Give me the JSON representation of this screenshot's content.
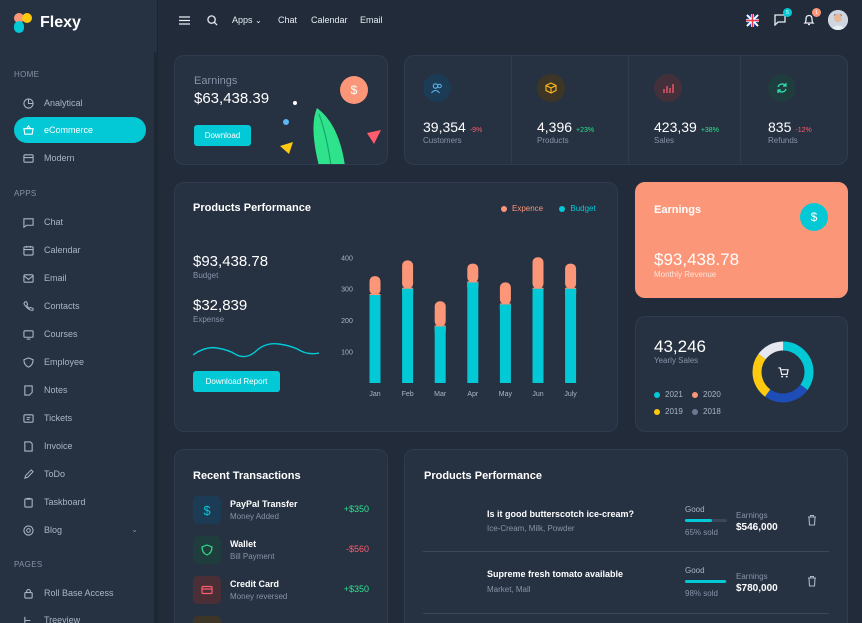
{
  "app": {
    "name": "Flexy"
  },
  "sidebar": {
    "sections": [
      {
        "title": "HOME",
        "items": [
          {
            "label": "Analytical",
            "icon": "chart-icon"
          },
          {
            "label": "eCommerce",
            "icon": "basket-icon",
            "active": true
          },
          {
            "label": "Modern",
            "icon": "window-icon"
          }
        ]
      },
      {
        "title": "APPS",
        "items": [
          {
            "label": "Chat",
            "icon": "chat-icon"
          },
          {
            "label": "Calendar",
            "icon": "calendar-icon"
          },
          {
            "label": "Email",
            "icon": "mail-icon"
          },
          {
            "label": "Contacts",
            "icon": "phone-icon"
          },
          {
            "label": "Courses",
            "icon": "course-icon"
          },
          {
            "label": "Employee",
            "icon": "shield-icon"
          },
          {
            "label": "Notes",
            "icon": "note-icon"
          },
          {
            "label": "Tickets",
            "icon": "ticket-icon"
          },
          {
            "label": "Invoice",
            "icon": "file-icon"
          },
          {
            "label": "ToDo",
            "icon": "edit-icon"
          },
          {
            "label": "Taskboard",
            "icon": "clipboard-icon"
          },
          {
            "label": "Blog",
            "icon": "blog-icon",
            "has_children": true
          }
        ]
      },
      {
        "title": "PAGES",
        "items": [
          {
            "label": "Roll Base Access",
            "icon": "lock-icon"
          },
          {
            "label": "Treeview",
            "icon": "tree-icon"
          }
        ]
      }
    ]
  },
  "topbar": {
    "links": [
      "Apps",
      "Chat",
      "Calendar",
      "Email"
    ],
    "messages_badge": "5",
    "notifications_badge": "1"
  },
  "earnings_small": {
    "label": "Earnings",
    "value": "$63,438.39",
    "button": "Download"
  },
  "stats": [
    {
      "value": "39,354",
      "change": "-9%",
      "direction": "down",
      "label": "Customers",
      "icon": "users-icon",
      "bg": "#1c3b55",
      "fg": "#5cb6f2"
    },
    {
      "value": "4,396",
      "change": "+23%",
      "direction": "up",
      "label": "Products",
      "icon": "box-icon",
      "bg": "#3d3626",
      "fg": "#ffb91c"
    },
    {
      "value": "423,39",
      "change": "+38%",
      "direction": "up",
      "label": "Sales",
      "icon": "bar-chart-icon",
      "bg": "#43303a",
      "fg": "#ff5c6c"
    },
    {
      "value": "835",
      "change": "-12%",
      "direction": "down",
      "label": "Refunds",
      "icon": "refresh-icon",
      "bg": "#1f3d3c",
      "fg": "#2ee3b4"
    }
  ],
  "products_performance": {
    "title": "Products Performance",
    "legend": [
      "Expence",
      "Budget"
    ],
    "budget_value": "$93,438.78",
    "budget_label": "Budget",
    "expense_value": "$32,839",
    "expense_label": "Expense",
    "button": "Download Report"
  },
  "chart_data": {
    "type": "bar",
    "stacked": true,
    "categories": [
      "Jan",
      "Feb",
      "Mar",
      "Apr",
      "May",
      "Jun",
      "July"
    ],
    "series": [
      {
        "name": "Budget",
        "values": [
          280,
          300,
          180,
          320,
          250,
          300,
          300
        ],
        "color": "#03c9d7"
      },
      {
        "name": "Expence",
        "values": [
          60,
          90,
          80,
          60,
          70,
          100,
          80
        ],
        "color": "#fb9678"
      }
    ],
    "yticks": [
      100,
      200,
      300,
      400
    ],
    "ylim": [
      0,
      420
    ],
    "grid": false
  },
  "earnings_big": {
    "label": "Earnings",
    "value": "$93,438.78",
    "sub": "Monthly Revenue"
  },
  "yearly_sales": {
    "value": "43,246",
    "label": "Yearly Sales",
    "legend": [
      {
        "year": "2021",
        "color": "#03c9d7"
      },
      {
        "year": "2020",
        "color": "#fb9678"
      },
      {
        "year": "2019",
        "color": "#fec90f"
      },
      {
        "year": "2018",
        "color": "#6b7a90"
      }
    ],
    "donut": [
      {
        "year": "2021",
        "value": 35,
        "color": "#03c9d7"
      },
      {
        "year": "2020",
        "value": 25,
        "color": "#1e4db7"
      },
      {
        "year": "2019",
        "value": 25,
        "color": "#fec90f"
      },
      {
        "year": "2018",
        "value": 15,
        "color": "#e5e9ef"
      }
    ]
  },
  "transactions": {
    "title": "Recent Transactions",
    "items": [
      {
        "title": "PayPal Transfer",
        "sub": "Money Added",
        "amount": "+$350",
        "positive": true,
        "icon": "dollar-icon",
        "bg": "#1c3b55",
        "fg": "#03c9d7"
      },
      {
        "title": "Wallet",
        "sub": "Bill Payment",
        "amount": "-$560",
        "positive": false,
        "icon": "shield-icon",
        "bg": "#1f3d3c",
        "fg": "#2ee38c"
      },
      {
        "title": "Credit Card",
        "sub": "Money reversed",
        "amount": "+$350",
        "positive": true,
        "icon": "card-icon",
        "bg": "#4a2f36",
        "fg": "#ff5c6c"
      }
    ]
  },
  "products_list": {
    "title": "Products Performance",
    "items": [
      {
        "name": "Is it good butterscotch ice-cream?",
        "tags": "Ice-Cream, Milk, Powder",
        "status": "Good",
        "percent": 65,
        "sold": "65% sold",
        "earn_label": "Earnings",
        "earnings": "$546,000"
      },
      {
        "name": "Supreme fresh tomato available",
        "tags": "Market, Mall",
        "status": "Good",
        "percent": 98,
        "sold": "98% sold",
        "earn_label": "Earnings",
        "earnings": "$780,000"
      }
    ]
  }
}
